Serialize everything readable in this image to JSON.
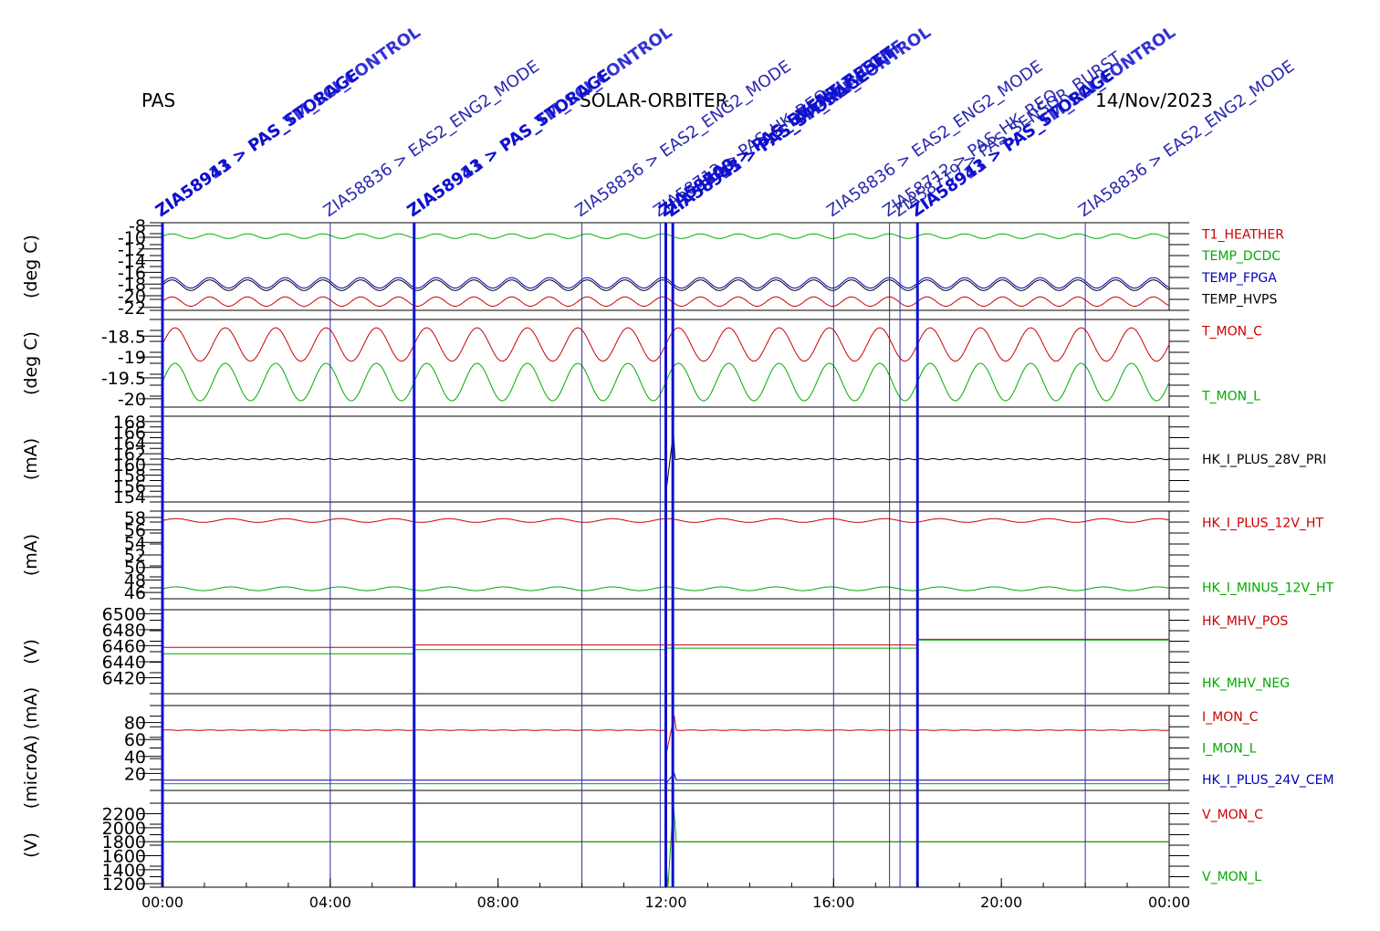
{
  "header": {
    "instrument": "PAS",
    "mission": "SOLAR-ORBITER",
    "date": "14/Nov/2023"
  },
  "colors": {
    "red": "#cc0000",
    "green": "#00aa00",
    "blue": "#0000bb",
    "black": "#000000",
    "event_thin": "#2a2ab0",
    "event_thick": "#1010d0"
  },
  "chart_data": {
    "type": "line",
    "x_unit": "time of day",
    "x_range": [
      "00:00",
      "24:00"
    ],
    "x_ticks": [
      "00:00",
      "04:00",
      "08:00",
      "12:00",
      "16:00",
      "20:00",
      "00:00"
    ],
    "events": [
      {
        "time": "00:00",
        "label": "ZIA58943 > PAS_STORAGE",
        "overlap": "ZIA58911 > PAS_TM_SCI_CONTROL",
        "style": "thick"
      },
      {
        "time": "04:00",
        "label": "ZIA58836 > EAS2_ENG2_MODE",
        "style": "thin"
      },
      {
        "time": "06:00",
        "label": "ZIA58943 > PAS_STORAGE",
        "overlap": "ZIA58911 > PAS_TM_SCI_CONTROL",
        "style": "thick"
      },
      {
        "time": "10:00",
        "label": "ZIA58836 > EAS2_ENG2_MODE",
        "style": "thin"
      },
      {
        "time": "11:52",
        "label": "ZIA58712 > PAS_HK_REQ",
        "style": "thin"
      },
      {
        "time": "12:00",
        "label": "ZIA58800 > PAS_EVENT_RESET",
        "overlap": "ZIA58743 > PAS_DEFAULT_CONF",
        "style": "thick"
      },
      {
        "time": "12:10",
        "label": "ZIA58943 > PAS_STORAGE",
        "overlap": "ZIA58911 > PAS_TM_SCI_CONTROL",
        "style": "thick"
      },
      {
        "time": "16:00",
        "label": "ZIA58836 > EAS2_ENG2_MODE",
        "style": "thin"
      },
      {
        "time": "17:20",
        "label": "ZIA58712 > PAS_HK_REQ",
        "style": "thin"
      },
      {
        "time": "17:35",
        "label": "ZIA58719 > PAS_SENSOR_BURST",
        "style": "thin"
      },
      {
        "time": "18:00",
        "label": "ZIA58943 > PAS_STORAGE",
        "overlap": "ZIA58911 > PAS_TM_SCI_CONTROL",
        "style": "thick"
      },
      {
        "time": "22:00",
        "label": "ZIA58836 > EAS2_ENG2_MODE",
        "style": "thin"
      }
    ],
    "panels": [
      {
        "id": "temps",
        "ylabel": "(deg C)",
        "ylim": [
          -22.5,
          -7.5
        ],
        "yticks": [
          -8,
          -10,
          -12,
          -14,
          -16,
          -18,
          -20,
          -22
        ],
        "series": [
          {
            "name": "T1_HEATHER",
            "color": "red",
            "base": -21.0,
            "amp": 0.8,
            "period_h": 0.9
          },
          {
            "name": "TEMP_DCDC",
            "color": "green",
            "base": -9.8,
            "amp": 0.4,
            "period_h": 0.9
          },
          {
            "name": "TEMP_FPGA",
            "color": "blue",
            "base": -17.8,
            "amp": 0.9,
            "period_h": 0.9
          },
          {
            "name": "TEMP_HVPS",
            "color": "black",
            "base": -18.2,
            "amp": 0.9,
            "period_h": 0.9
          }
        ]
      },
      {
        "id": "tmon",
        "ylabel": "(deg C)",
        "ylim": [
          -20.2,
          -18.1
        ],
        "yticks": [
          -18.5,
          -19.0,
          -19.5,
          -20.0
        ],
        "series": [
          {
            "name": "T_MON_C",
            "color": "red",
            "base": -18.7,
            "amp": 0.4,
            "period_h": 1.2
          },
          {
            "name": "T_MON_L",
            "color": "green",
            "base": -19.6,
            "amp": 0.45,
            "period_h": 1.2
          }
        ]
      },
      {
        "id": "i28",
        "ylabel": "(mA)",
        "ylim": [
          153,
          169
        ],
        "yticks": [
          168,
          166,
          164,
          162,
          160,
          158,
          156,
          154
        ],
        "series": [
          {
            "name": "HK_I_PLUS_28V_PRI",
            "color": "black",
            "base": 161.0,
            "amp": 0.1,
            "period_h": 0.3,
            "spike": [
              [
                11.98,
                161.0
              ],
              [
                12.0,
                154.5
              ],
              [
                12.18,
                166.0
              ],
              [
                12.22,
                161.0
              ]
            ]
          }
        ]
      },
      {
        "id": "i12",
        "ylabel": "(mA)",
        "ylim": [
          45,
          59
        ],
        "yticks": [
          58,
          56,
          54,
          52,
          50,
          48,
          46
        ],
        "series": [
          {
            "name": "HK_I_PLUS_12V_HT",
            "color": "red",
            "base": 57.5,
            "amp": 0.3,
            "period_h": 1.3
          },
          {
            "name": "HK_I_MINUS_12V_HT",
            "color": "green",
            "base": 46.6,
            "amp": 0.3,
            "period_h": 1.3
          }
        ]
      },
      {
        "id": "mhv",
        "ylabel": "(V)",
        "ylim": [
          6400,
          6505
        ],
        "yticks": [
          6500,
          6480,
          6460,
          6440,
          6420
        ],
        "series": [
          {
            "name": "HK_MHV_POS",
            "color": "red",
            "steps": [
              [
                0,
                6458
              ],
              [
                6,
                6461
              ],
              [
                12,
                6461
              ],
              [
                18,
                6468
              ],
              [
                24,
                6468
              ]
            ]
          },
          {
            "name": "HK_MHV_NEG",
            "color": "green",
            "steps": [
              [
                0,
                6450
              ],
              [
                6,
                6455
              ],
              [
                12,
                6457
              ],
              [
                18,
                6467
              ],
              [
                24,
                6467
              ]
            ]
          }
        ]
      },
      {
        "id": "imon",
        "ylabel": "(microA) (mA)",
        "ylim": [
          0,
          100
        ],
        "yticks": [
          80,
          60,
          40,
          20
        ],
        "series": [
          {
            "name": "I_MON_C",
            "color": "red",
            "base": 71.0,
            "amp": 0.3,
            "period_h": 0.5,
            "spike": [
              [
                11.98,
                71
              ],
              [
                12.02,
                45
              ],
              [
                12.2,
                88
              ],
              [
                12.25,
                71
              ]
            ]
          },
          {
            "name": "I_MON_L",
            "color": "green",
            "base": 8.0,
            "amp": 0.0,
            "period_h": 1.0
          },
          {
            "name": "HK_I_PLUS_24V_CEM",
            "color": "blue",
            "base": 12.0,
            "amp": 0.0,
            "period_h": 1.0,
            "spike": [
              [
                11.98,
                12
              ],
              [
                12.0,
                8
              ],
              [
                12.2,
                20
              ],
              [
                12.25,
                12
              ]
            ]
          }
        ]
      },
      {
        "id": "vmon",
        "ylabel": "(V)",
        "ylim": [
          1150,
          2350
        ],
        "yticks": [
          2200,
          2000,
          1800,
          1600,
          1400,
          1200
        ],
        "series": [
          {
            "name": "V_MON_C",
            "color": "red",
            "base": 1800,
            "amp": 0.0,
            "period_h": 1.0
          },
          {
            "name": "V_MON_L",
            "color": "green",
            "base": 1800,
            "amp": 0.0,
            "period_h": 1.0,
            "spike": [
              [
                11.98,
                1800
              ],
              [
                12.05,
                1150
              ],
              [
                12.18,
                2350
              ],
              [
                12.25,
                1800
              ]
            ]
          }
        ]
      }
    ]
  }
}
